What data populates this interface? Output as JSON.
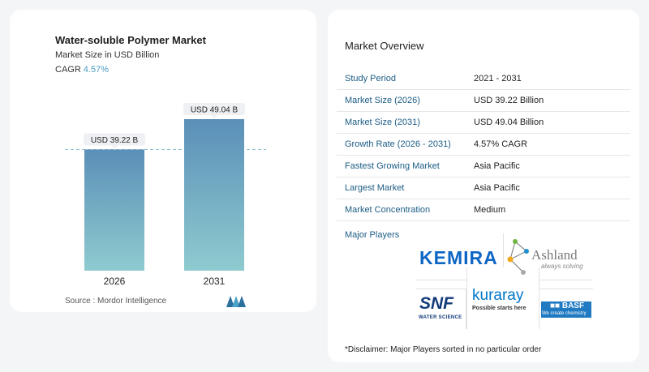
{
  "chart_data": {
    "type": "bar",
    "title": "Water-soluble Polymer Market",
    "subtitle": "Market Size in USD Billion",
    "cagr_label": "CAGR",
    "cagr_value": "4.57%",
    "categories": [
      "2026",
      "2031"
    ],
    "values": [
      39.22,
      49.04
    ],
    "data_labels": [
      "USD 39.22 B",
      "USD 49.04 B"
    ],
    "ylim": [
      0,
      49.04
    ],
    "reference_line": 39.22,
    "colors": {
      "bar_top": "#5b8fb8",
      "bar_bottom": "#8ecbcf",
      "dashed": "#8ec3d2"
    }
  },
  "source": "Source :  Mordor Intelligence",
  "overview": {
    "title": "Market Overview",
    "rows": [
      {
        "label": "Study Period",
        "value": "2021 - 2031"
      },
      {
        "label": "Market Size (2026)",
        "value": "USD 39.22 Billion"
      },
      {
        "label": "Market Size (2031)",
        "value": "USD 49.04 Billion"
      },
      {
        "label": "Growth Rate (2026 - 2031)",
        "value": "4.57% CAGR"
      },
      {
        "label": "Fastest Growing Market",
        "value": "Asia Pacific"
      },
      {
        "label": "Largest Market",
        "value": "Asia Pacific"
      },
      {
        "label": "Market Concentration",
        "value": "Medium"
      }
    ]
  },
  "players": {
    "title": "Major Players",
    "kemira": "KEMIRA",
    "ashland": "Ashland",
    "ashland_tagline": "always solving",
    "snf": "SNF",
    "snf_tagline": "WATER SCIENCE",
    "kuraray": "kuraray",
    "kuraray_tagline": "Possible starts here",
    "basf": "■■ BASF",
    "basf_tagline": "We create chemistry"
  },
  "disclaimer": "*Disclaimer: Major Players sorted in no particular order"
}
